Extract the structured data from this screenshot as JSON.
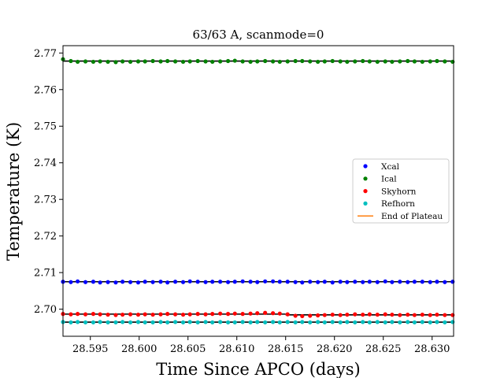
{
  "chart_data": {
    "type": "scatter",
    "title": "63/63 A, scanmode=0",
    "xlabel": "Time Since APCO (days)",
    "ylabel": "Temperature (K)",
    "xlim": [
      28.5922,
      28.6322
    ],
    "ylim": [
      2.6926,
      2.772
    ],
    "xticks": [
      "28.595",
      "28.600",
      "28.605",
      "28.610",
      "28.615",
      "28.620",
      "28.625",
      "28.630"
    ],
    "xtick_values": [
      28.595,
      28.6,
      28.605,
      28.61,
      28.615,
      28.62,
      28.625,
      28.63
    ],
    "yticks": [
      "2.70",
      "2.71",
      "2.72",
      "2.73",
      "2.74",
      "2.75",
      "2.76",
      "2.77"
    ],
    "ytick_values": [
      2.7,
      2.71,
      2.72,
      2.73,
      2.74,
      2.75,
      2.76,
      2.77
    ],
    "grid": false,
    "legend_position": "center-right",
    "series": [
      {
        "name": "Xcal",
        "color": "#0000ff",
        "kind": "points",
        "fit_segments": [
          [
            28.5922,
            28.6322,
            2.7075
          ]
        ],
        "x": [
          28.5922,
          28.593,
          28.5937,
          28.5945,
          28.5953,
          28.596,
          28.5968,
          28.5976,
          28.5983,
          28.5991,
          28.5999,
          28.6006,
          28.6014,
          28.6022,
          28.6029,
          28.6037,
          28.6045,
          28.6052,
          28.606,
          28.6068,
          28.6075,
          28.6083,
          28.6091,
          28.6098,
          28.6106,
          28.6114,
          28.6121,
          28.6129,
          28.6137,
          28.6144,
          28.6152,
          28.616,
          28.6167,
          28.6175,
          28.6183,
          28.619,
          28.6198,
          28.6206,
          28.6213,
          28.6221,
          28.6229,
          28.6236,
          28.6244,
          28.6252,
          28.6259,
          28.6267,
          28.6275,
          28.6282,
          28.629,
          28.6298,
          28.6305,
          28.6313,
          28.6321
        ],
        "y": [
          2.7075,
          2.7074,
          2.7076,
          2.7074,
          2.7075,
          2.7073,
          2.7074,
          2.7073,
          2.7075,
          2.7074,
          2.7073,
          2.7075,
          2.7074,
          2.7075,
          2.7073,
          2.7075,
          2.7074,
          2.7076,
          2.7075,
          2.7074,
          2.7075,
          2.7075,
          2.7074,
          2.7075,
          2.7076,
          2.7075,
          2.7074,
          2.7076,
          2.7076,
          2.7075,
          2.7075,
          2.7074,
          2.7073,
          2.7075,
          2.7074,
          2.7075,
          2.7073,
          2.7075,
          2.7074,
          2.7075,
          2.7074,
          2.7075,
          2.7074,
          2.7076,
          2.7074,
          2.7075,
          2.7074,
          2.7075,
          2.7075,
          2.7074,
          2.7075,
          2.7074,
          2.7075
        ]
      },
      {
        "name": "Ical",
        "color": "#008000",
        "kind": "points",
        "fit_segments": [
          [
            28.5922,
            28.6322,
            2.7678
          ]
        ],
        "x": [
          28.5922,
          28.593,
          28.5937,
          28.5945,
          28.5953,
          28.596,
          28.5968,
          28.5976,
          28.5983,
          28.5991,
          28.5999,
          28.6006,
          28.6014,
          28.6022,
          28.6029,
          28.6037,
          28.6045,
          28.6052,
          28.606,
          28.6068,
          28.6075,
          28.6083,
          28.6091,
          28.6098,
          28.6106,
          28.6114,
          28.6121,
          28.6129,
          28.6137,
          28.6144,
          28.6152,
          28.616,
          28.6167,
          28.6175,
          28.6183,
          28.619,
          28.6198,
          28.6206,
          28.6213,
          28.6221,
          28.6229,
          28.6236,
          28.6244,
          28.6252,
          28.6259,
          28.6267,
          28.6275,
          28.6282,
          28.629,
          28.6298,
          28.6305,
          28.6313,
          28.6321
        ],
        "y": [
          2.7683,
          2.7678,
          2.7676,
          2.7677,
          2.7676,
          2.7677,
          2.7676,
          2.7675,
          2.7677,
          2.7676,
          2.7677,
          2.7677,
          2.7678,
          2.7677,
          2.7678,
          2.7677,
          2.7676,
          2.7677,
          2.7678,
          2.7677,
          2.7676,
          2.7677,
          2.7678,
          2.7679,
          2.7677,
          2.7676,
          2.7677,
          2.7678,
          2.7677,
          2.7676,
          2.7677,
          2.7678,
          2.7678,
          2.7677,
          2.7676,
          2.7677,
          2.7678,
          2.7677,
          2.7676,
          2.7677,
          2.7678,
          2.7677,
          2.7676,
          2.7677,
          2.7676,
          2.7677,
          2.7678,
          2.7677,
          2.7676,
          2.7677,
          2.7678,
          2.7677,
          2.7676
        ]
      },
      {
        "name": "Skyhorn",
        "color": "#ff0000",
        "kind": "points",
        "fit_segments": [
          [
            28.5922,
            28.615,
            2.69865
          ],
          [
            28.615,
            28.6322,
            2.69845
          ]
        ],
        "x": [
          28.5922,
          28.593,
          28.5937,
          28.5945,
          28.5953,
          28.596,
          28.5968,
          28.5976,
          28.5983,
          28.5991,
          28.5999,
          28.6006,
          28.6014,
          28.6022,
          28.6029,
          28.6037,
          28.6045,
          28.6052,
          28.606,
          28.6068,
          28.6075,
          28.6083,
          28.6091,
          28.6098,
          28.6106,
          28.6114,
          28.6121,
          28.6129,
          28.6137,
          28.6144,
          28.6152,
          28.616,
          28.6167,
          28.6175,
          28.6183,
          28.619,
          28.6198,
          28.6206,
          28.6213,
          28.6221,
          28.6229,
          28.6236,
          28.6244,
          28.6252,
          28.6259,
          28.6267,
          28.6275,
          28.6282,
          28.629,
          28.6298,
          28.6305,
          28.6313,
          28.6321
        ],
        "y": [
          2.6987,
          2.6986,
          2.6987,
          2.6986,
          2.6987,
          2.6986,
          2.6985,
          2.6984,
          2.6985,
          2.6986,
          2.6985,
          2.6986,
          2.6985,
          2.6986,
          2.6987,
          2.6986,
          2.6985,
          2.6986,
          2.6987,
          2.6986,
          2.6987,
          2.6988,
          2.6987,
          2.6988,
          2.6987,
          2.6988,
          2.6989,
          2.699,
          2.6989,
          2.6988,
          2.6986,
          2.6982,
          2.6981,
          2.6982,
          2.6983,
          2.6984,
          2.6985,
          2.6984,
          2.6985,
          2.6986,
          2.6985,
          2.6986,
          2.6985,
          2.6986,
          2.6985,
          2.6984,
          2.6985,
          2.6984,
          2.6985,
          2.6984,
          2.6985,
          2.6984,
          2.6984
        ]
      },
      {
        "name": "Refhorn",
        "color": "#00bfbf",
        "kind": "points",
        "fit_segments": [
          [
            28.5922,
            28.6322,
            2.69645
          ]
        ],
        "x": [
          28.5922,
          28.593,
          28.5937,
          28.5945,
          28.5953,
          28.596,
          28.5968,
          28.5976,
          28.5983,
          28.5991,
          28.5999,
          28.6006,
          28.6014,
          28.6022,
          28.6029,
          28.6037,
          28.6045,
          28.6052,
          28.606,
          28.6068,
          28.6075,
          28.6083,
          28.6091,
          28.6098,
          28.6106,
          28.6114,
          28.6121,
          28.6129,
          28.6137,
          28.6144,
          28.6152,
          28.616,
          28.6167,
          28.6175,
          28.6183,
          28.619,
          28.6198,
          28.6206,
          28.6213,
          28.6221,
          28.6229,
          28.6236,
          28.6244,
          28.6252,
          28.6259,
          28.6267,
          28.6275,
          28.6282,
          28.629,
          28.6298,
          28.6305,
          28.6313,
          28.6321
        ],
        "y": [
          2.6965,
          2.6964,
          2.6965,
          2.6964,
          2.6964,
          2.6965,
          2.6964,
          2.6964,
          2.6965,
          2.6964,
          2.6965,
          2.6964,
          2.6964,
          2.6965,
          2.6964,
          2.6965,
          2.6964,
          2.6965,
          2.6964,
          2.6965,
          2.6964,
          2.6965,
          2.6964,
          2.6964,
          2.6965,
          2.6964,
          2.6965,
          2.6964,
          2.6965,
          2.6964,
          2.6965,
          2.6964,
          2.6965,
          2.6964,
          2.6965,
          2.6964,
          2.6965,
          2.6964,
          2.6965,
          2.6964,
          2.6965,
          2.6964,
          2.6965,
          2.6964,
          2.6965,
          2.6964,
          2.6965,
          2.6964,
          2.6965,
          2.6964,
          2.6965,
          2.6964,
          2.6965
        ]
      },
      {
        "name": "End of Plateau",
        "color": "#ff7f0e",
        "kind": "line",
        "x": [],
        "y": []
      }
    ],
    "fit_line_color": "#000000"
  }
}
